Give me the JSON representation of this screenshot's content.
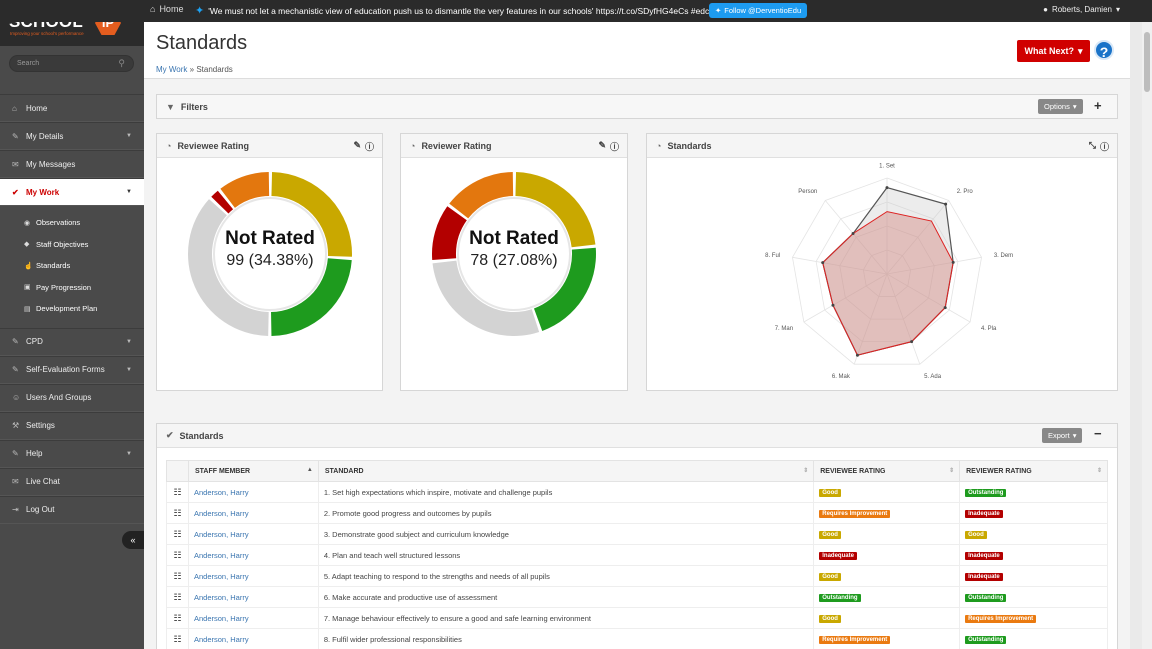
{
  "topbar": {
    "home": "Home",
    "tweet": "'We must not let a mechanistic view of education push us to dismantle the very features in our schools' https://t.co/SDyfHG4eCs #edchat",
    "follow": "Follow @DerventioEdu",
    "user": "Roberts, Damien"
  },
  "logo": {
    "text": "SCHOOL",
    "badge": "iP",
    "tagline": "Improving your school's performance"
  },
  "search": {
    "placeholder": "Search"
  },
  "nav": [
    {
      "label": "Home",
      "icon": "home-icon",
      "caret": false
    },
    {
      "label": "My Details",
      "icon": "pencil-icon",
      "caret": true
    },
    {
      "label": "My Messages",
      "icon": "envelope-icon",
      "caret": false
    },
    {
      "label": "My Work",
      "icon": "check-icon",
      "caret": true,
      "active": true
    }
  ],
  "subnav": [
    {
      "label": "Observations",
      "icon": "eye-icon"
    },
    {
      "label": "Staff Objectives",
      "icon": "diamond-icon"
    },
    {
      "label": "Standards",
      "icon": "thumbs-up-icon"
    },
    {
      "label": "Pay Progression",
      "icon": "money-icon"
    },
    {
      "label": "Development Plan",
      "icon": "clipboard-icon"
    }
  ],
  "nav2": [
    {
      "label": "CPD",
      "icon": "pencil-icon",
      "caret": true
    },
    {
      "label": "Self-Evaluation Forms",
      "icon": "pencil-icon",
      "caret": true
    },
    {
      "label": "Users And Groups",
      "icon": "users-icon",
      "caret": false
    },
    {
      "label": "Settings",
      "icon": "wrench-icon",
      "caret": false
    },
    {
      "label": "Help",
      "icon": "pencil-icon",
      "caret": true
    },
    {
      "label": "Live Chat",
      "icon": "chat-icon",
      "caret": false
    },
    {
      "label": "Log Out",
      "icon": "logout-icon",
      "caret": false
    }
  ],
  "page": {
    "title": "Standards",
    "crumb_link": "My Work",
    "crumb_sep": " » ",
    "crumb_current": "Standards",
    "what_next": "What Next?",
    "help": "?"
  },
  "filters": {
    "title": "Filters",
    "options": "Options"
  },
  "reviewee": {
    "title": "Reviewee Rating",
    "label": "Not Rated",
    "value": "99 (34.38%)",
    "segments": [
      {
        "name": "Good",
        "color": "#c9a800",
        "pct": 24.0
      },
      {
        "name": "Outstanding",
        "color": "#1e9b1e",
        "pct": 22.5
      },
      {
        "name": "Not Rated",
        "color": "#d3d3d3",
        "pct": 34.38
      },
      {
        "name": "Inadequate",
        "color": "#b30000",
        "pct": 2.2
      },
      {
        "name": "Requires Improvement",
        "color": "#e3770e",
        "pct": 10.0
      }
    ]
  },
  "reviewer": {
    "title": "Reviewer Rating",
    "label": "Not Rated",
    "value": "78 (27.08%)",
    "segments": [
      {
        "name": "Good",
        "color": "#c9a800",
        "pct": 22.0
      },
      {
        "name": "Outstanding",
        "color": "#1e9b1e",
        "pct": 20.0
      },
      {
        "name": "Not Rated",
        "color": "#d3d3d3",
        "pct": 27.08
      },
      {
        "name": "Inadequate",
        "color": "#b30000",
        "pct": 11.0
      },
      {
        "name": "Requires Improvement",
        "color": "#e3770e",
        "pct": 14.0
      }
    ]
  },
  "radar": {
    "title": "Standards",
    "axes": [
      "1. Set",
      "2. Pro",
      "3. Dem",
      "4. Pla",
      "5. Ada",
      "6. Mak",
      "7. Man",
      "8. Ful",
      "Person"
    ],
    "series_outer": [
      0.9,
      0.95,
      0.7,
      0.7,
      0.75,
      0.9,
      0.65,
      0.68,
      0.55
    ],
    "series_inner": [
      0.65,
      0.72,
      0.7,
      0.7,
      0.75,
      0.9,
      0.65,
      0.68,
      0.55
    ]
  },
  "table": {
    "title": "Standards",
    "export": "Export",
    "columns": [
      "STAFF MEMBER",
      "STANDARD",
      "REVIEWEE RATING",
      "REVIEWER RATING"
    ],
    "rows": [
      {
        "staff": "Anderson, Harry",
        "standard": "1. Set high expectations which inspire, motivate and challenge pupils",
        "reviewee": "Good",
        "reviewer": "Outstanding"
      },
      {
        "staff": "Anderson, Harry",
        "standard": "2. Promote good progress and outcomes by pupils",
        "reviewee": "Requires Improvement",
        "reviewer": "Inadequate"
      },
      {
        "staff": "Anderson, Harry",
        "standard": "3. Demonstrate good subject and curriculum knowledge",
        "reviewee": "Good",
        "reviewer": "Good"
      },
      {
        "staff": "Anderson, Harry",
        "standard": "4. Plan and teach well structured lessons",
        "reviewee": "Inadequate",
        "reviewer": "Inadequate"
      },
      {
        "staff": "Anderson, Harry",
        "standard": "5. Adapt teaching to respond to the strengths and needs of all pupils",
        "reviewee": "Good",
        "reviewer": "Inadequate"
      },
      {
        "staff": "Anderson, Harry",
        "standard": "6. Make accurate and productive use of assessment",
        "reviewee": "Outstanding",
        "reviewer": "Outstanding"
      },
      {
        "staff": "Anderson, Harry",
        "standard": "7. Manage behaviour effectively to ensure a good and safe learning environment",
        "reviewee": "Good",
        "reviewer": "Requires Improvement"
      },
      {
        "staff": "Anderson, Harry",
        "standard": "8. Fulfil wider professional responsibilities",
        "reviewee": "Requires Improvement",
        "reviewer": "Outstanding"
      }
    ]
  },
  "collapse": "«"
}
